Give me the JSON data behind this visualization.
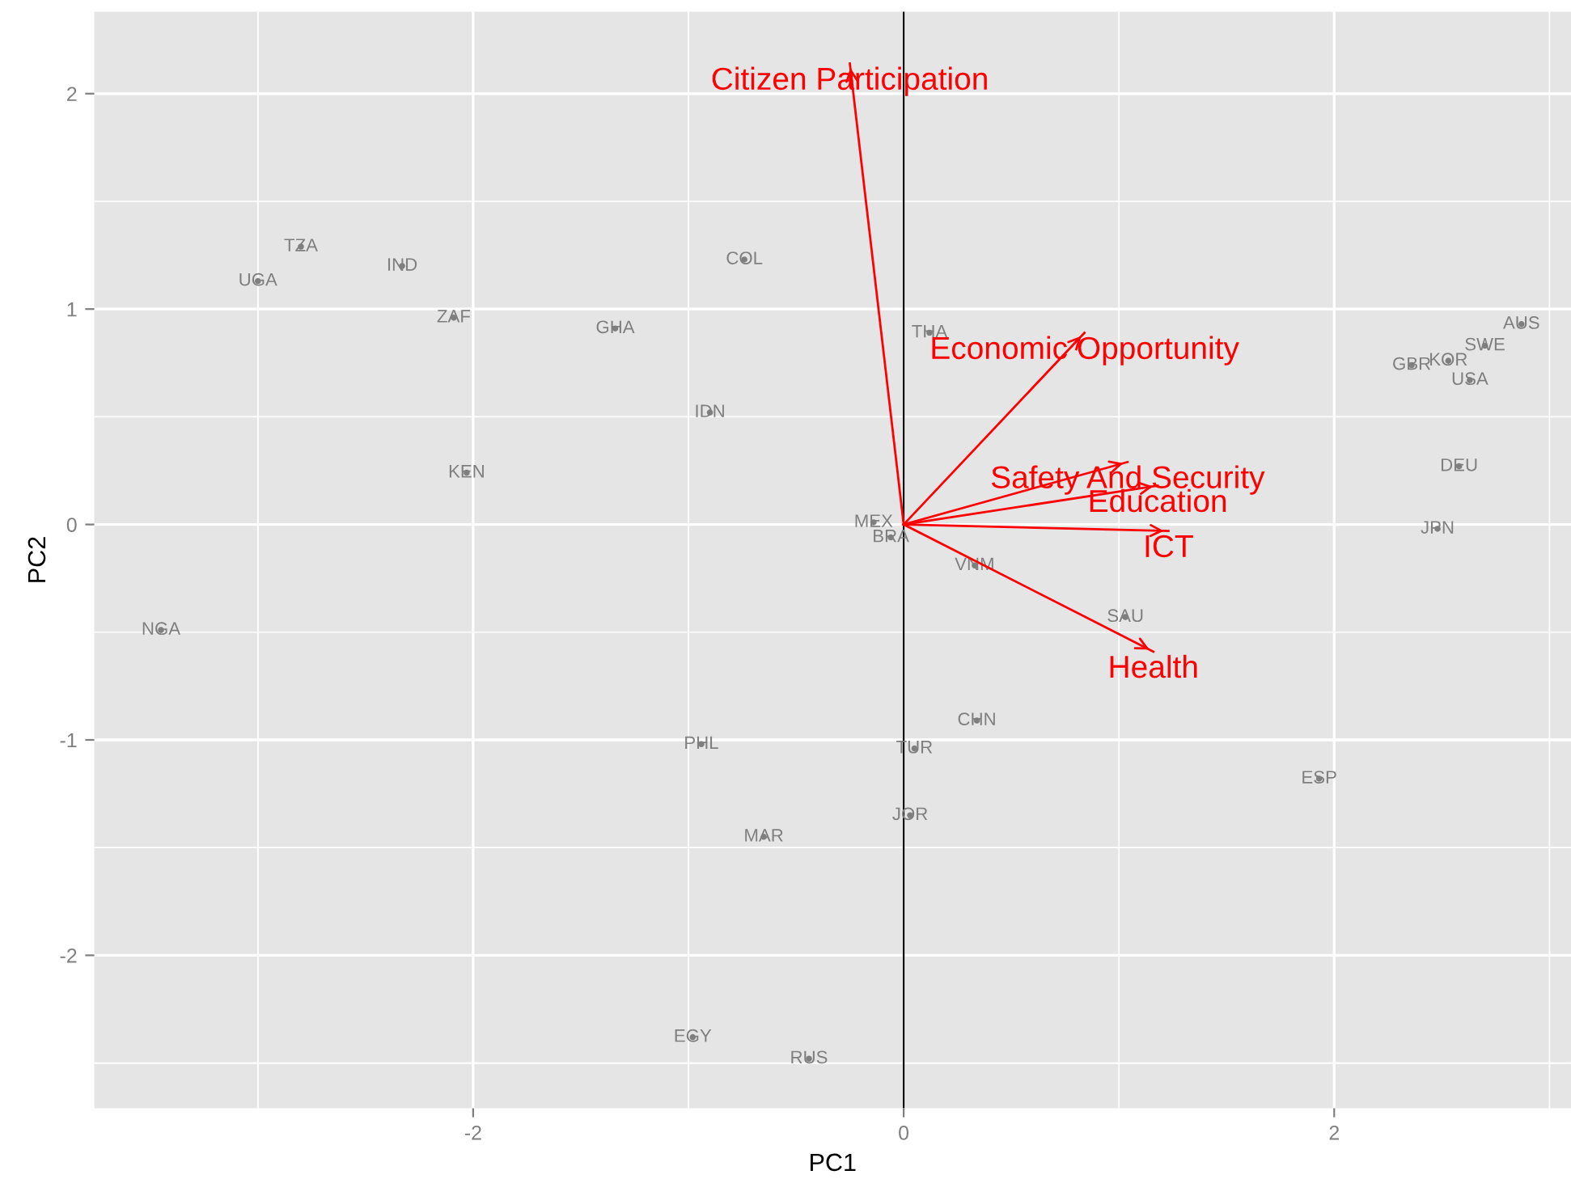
{
  "chart_data": {
    "type": "scatter",
    "xlabel": "PC1",
    "ylabel": "PC2",
    "xlim": [
      -3.76,
      3.1
    ],
    "ylim": [
      -2.71,
      2.38
    ],
    "xticks": [
      -2,
      0,
      2
    ],
    "yticks": [
      -2,
      -1,
      0,
      1,
      2
    ],
    "grid": true,
    "marker": "none",
    "annotations": [
      {
        "text": "Citizen Participation",
        "x": -0.25,
        "y": 2.14
      },
      {
        "text": "Economic Opportunity",
        "x": 0.84,
        "y": 0.89
      },
      {
        "text": "Safety And Security",
        "x": 1.04,
        "y": 0.29
      },
      {
        "text": "Education",
        "x": 1.18,
        "y": 0.18
      },
      {
        "text": "ICT",
        "x": 1.23,
        "y": -0.03
      },
      {
        "text": "Health",
        "x": 1.16,
        "y": -0.59
      }
    ],
    "ref_lines": [
      {
        "axis": "x",
        "value": 0,
        "color": "#000000"
      }
    ],
    "series": [
      {
        "color": "#7f7f7f",
        "x": [
          -2.8,
          -3.0,
          -2.33,
          -2.09,
          -2.03,
          -3.45,
          -1.34,
          -0.74,
          -0.9,
          0.12,
          -0.14,
          -0.06,
          0.33,
          1.03,
          0.34,
          0.05,
          0.03,
          -0.94,
          -0.65,
          -0.98,
          -0.44,
          1.93,
          2.87,
          2.7,
          2.53,
          2.36,
          2.63,
          2.58,
          2.48
        ],
        "values": [
          1.29,
          1.13,
          1.2,
          0.96,
          0.24,
          -0.49,
          0.91,
          1.23,
          0.52,
          0.89,
          0.01,
          -0.06,
          -0.19,
          -0.43,
          -0.91,
          -1.04,
          -1.35,
          -1.02,
          -1.45,
          -2.38,
          -2.48,
          -1.18,
          0.93,
          0.83,
          0.76,
          0.74,
          0.67,
          0.27,
          -0.02
        ],
        "value_labels": [
          "TZA",
          "UGA",
          "IND",
          "ZAF",
          "KEN",
          "NGA",
          "GHA",
          "COL",
          "IDN",
          "THA",
          "MEX",
          "BRA",
          "VNM",
          "SAU",
          "CHN",
          "TUR",
          "JOR",
          "PHL",
          "MAR",
          "EGY",
          "RUS",
          "ESP",
          "AUS",
          "SWE",
          "KOR",
          "GBR",
          "USA",
          "DEU",
          "JPN"
        ]
      },
      {
        "type": "line",
        "color": "#ff0000",
        "x": [
          0,
          -0.25
        ],
        "values": [
          0,
          2.14
        ]
      },
      {
        "type": "line",
        "color": "#ff0000",
        "x": [
          0,
          0.84
        ],
        "values": [
          0,
          0.89
        ]
      },
      {
        "type": "line",
        "color": "#ff0000",
        "x": [
          0,
          1.04
        ],
        "values": [
          0,
          0.29
        ]
      },
      {
        "type": "line",
        "color": "#ff0000",
        "x": [
          0,
          1.18
        ],
        "values": [
          0,
          0.18
        ]
      },
      {
        "type": "line",
        "color": "#ff0000",
        "x": [
          0,
          1.23
        ],
        "values": [
          0,
          -0.03
        ]
      },
      {
        "type": "line",
        "color": "#ff0000",
        "x": [
          0,
          1.16
        ],
        "values": [
          0,
          -0.59
        ]
      }
    ]
  }
}
